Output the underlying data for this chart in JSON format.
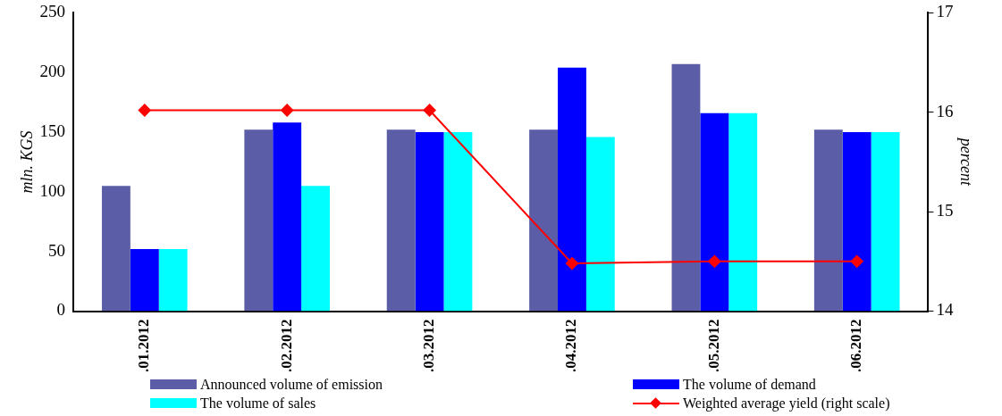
{
  "chart_data": {
    "type": "bar",
    "ylabel": "mln. KGS",
    "y2label": "percent",
    "categories": [
      ".01.2012",
      ".02.2012",
      ".03.2012",
      ".04.2012",
      ".05.2012",
      ".06.2012"
    ],
    "series": [
      {
        "name": "Announced volume of emission",
        "color": "#5b5ea6",
        "values": [
          105,
          152,
          152,
          152,
          207,
          152
        ]
      },
      {
        "name": "The volume of demand",
        "color": "#0000ff",
        "values": [
          52,
          158,
          150,
          204,
          166,
          150
        ]
      },
      {
        "name": "The volume of sales",
        "color": "#00ffff",
        "values": [
          52,
          105,
          150,
          146,
          166,
          150
        ]
      },
      {
        "name": "Weighted average yield (right scale)",
        "type": "line",
        "axis": "y2",
        "color": "#ff0000",
        "values": [
          16.02,
          16.02,
          16.02,
          14.48,
          14.5,
          14.5
        ]
      }
    ],
    "ylim": [
      0,
      250
    ],
    "yticks": [
      0,
      50,
      100,
      150,
      200,
      250
    ],
    "y2lim": [
      14,
      17
    ],
    "y2ticks": [
      14,
      15,
      16,
      17
    ],
    "grid": false,
    "legend": "bottom",
    "marker": "diamond",
    "line_style": "solid"
  }
}
